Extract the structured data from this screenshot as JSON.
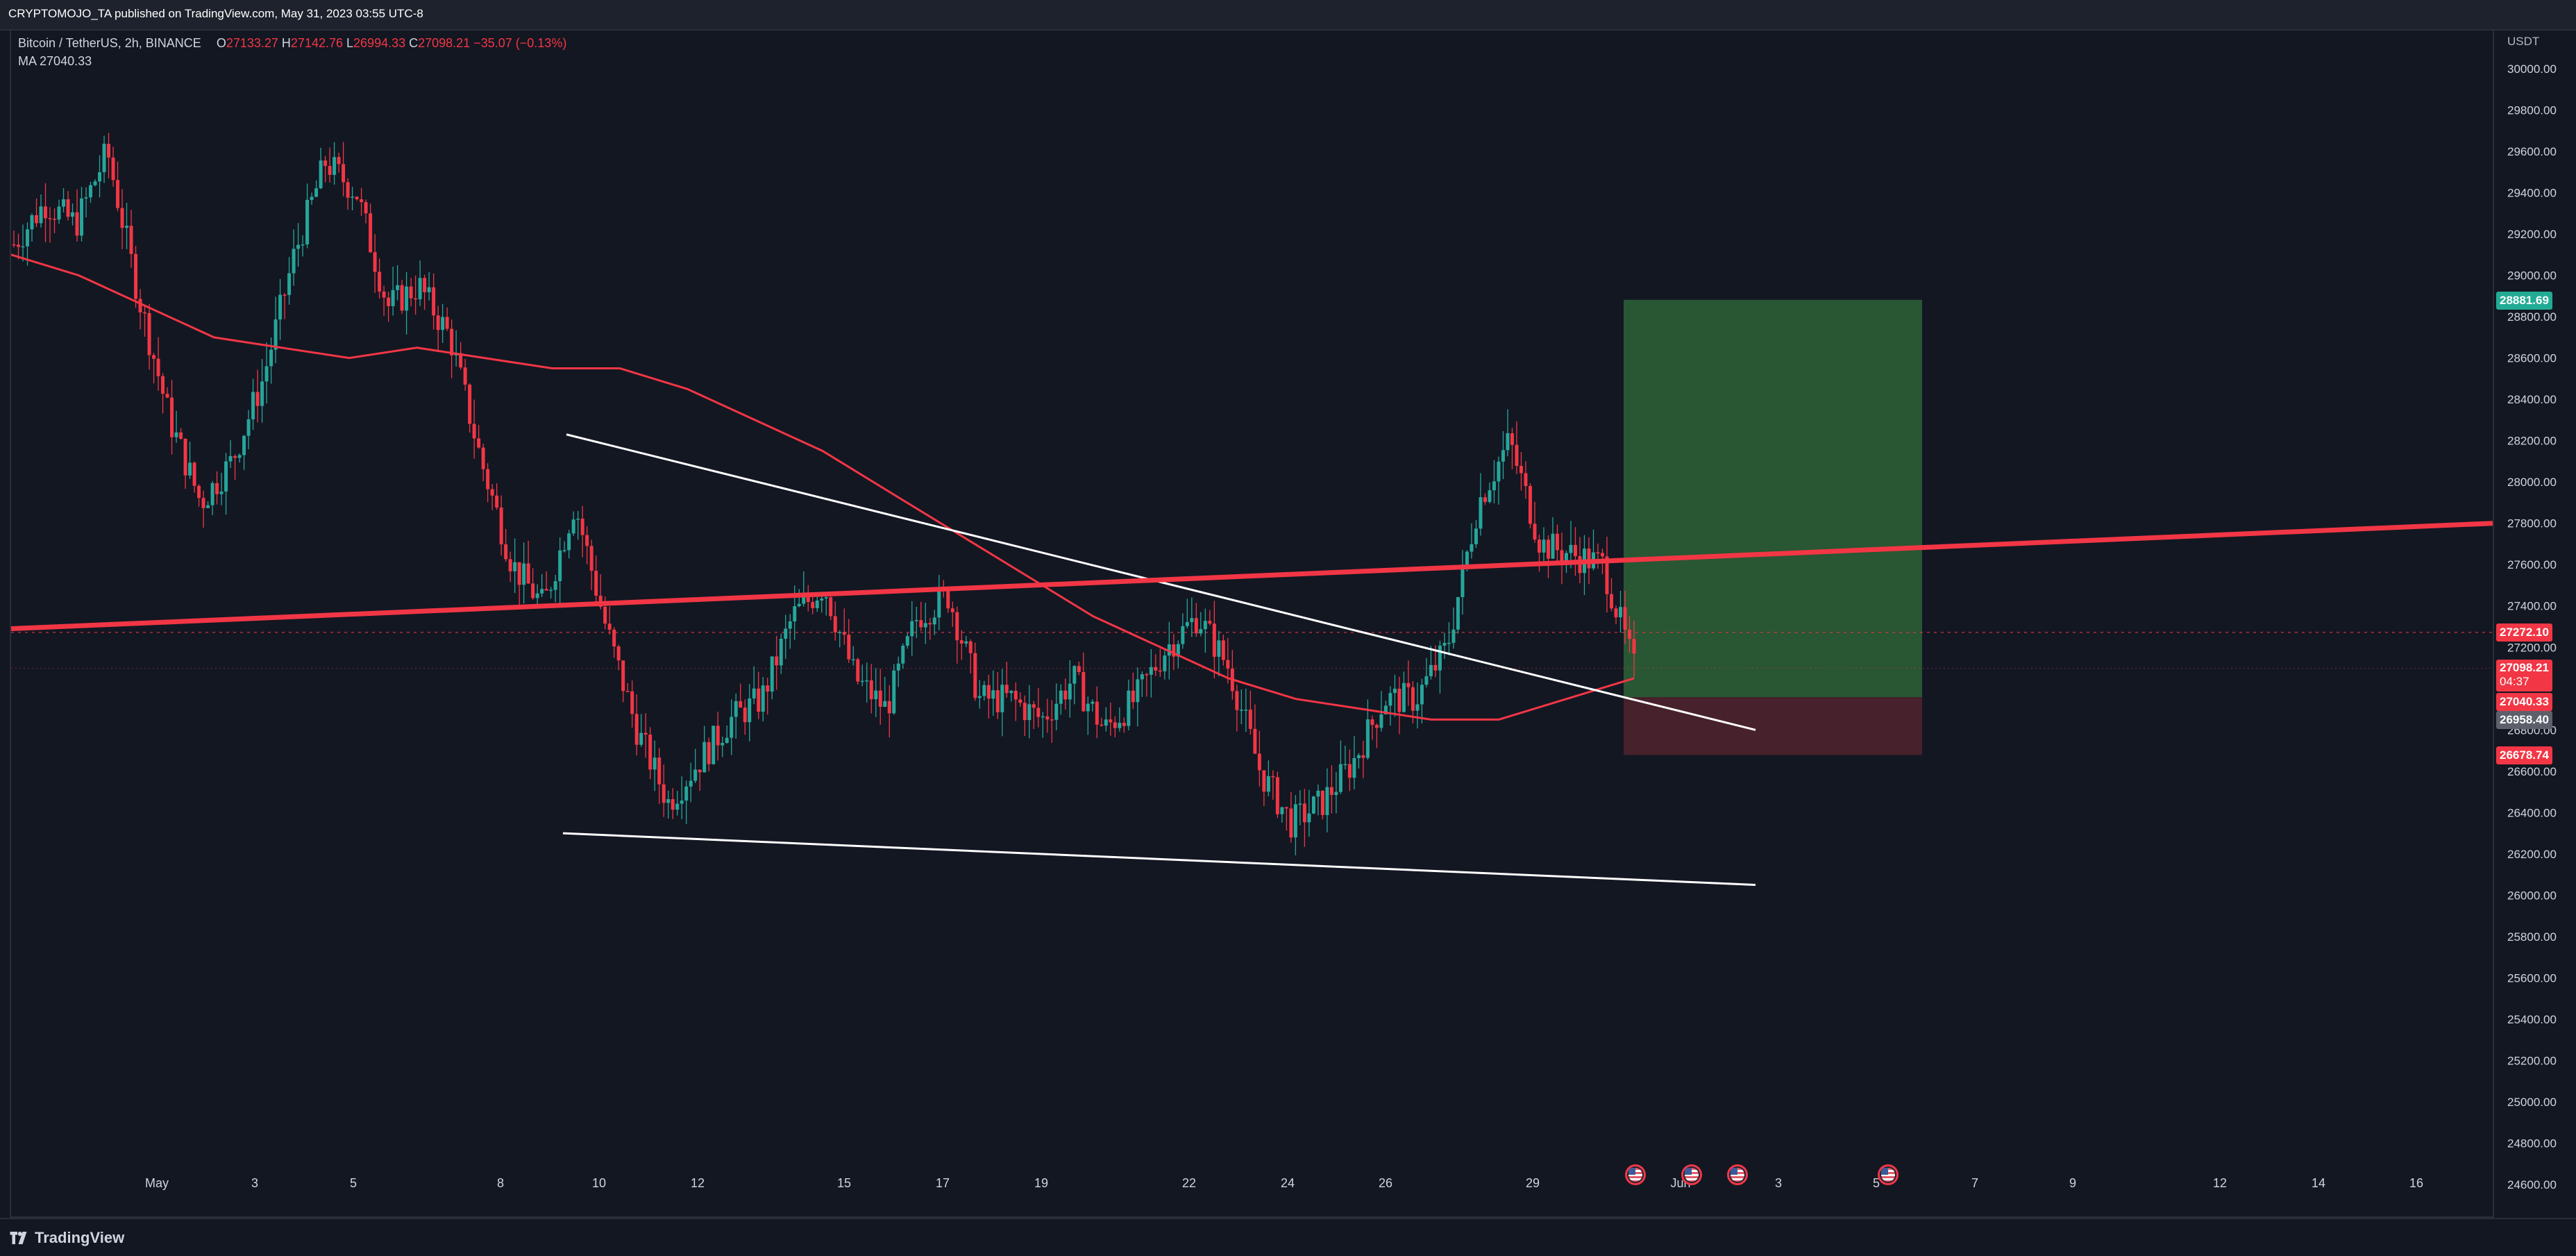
{
  "header": {
    "publisher_text": "CRYPTOMOJO_TA published on TradingView.com, May 31, 2023 03:55 UTC-8"
  },
  "legend": {
    "symbol": "Bitcoin / TetherUS, 2h, BINANCE",
    "o_label": "O",
    "o_value": "27133.27",
    "h_label": "H",
    "h_value": "27142.76",
    "l_label": "L",
    "l_value": "26994.33",
    "c_label": "C",
    "c_value": "27098.21",
    "change": "−35.07 (−0.13%)",
    "ma_label": "MA",
    "ma_value": "27040.33"
  },
  "axis": {
    "unit": "USDT",
    "y_ticks": [
      "30000.00",
      "29800.00",
      "29600.00",
      "29400.00",
      "29200.00",
      "29000.00",
      "28800.00",
      "28600.00",
      "28400.00",
      "28200.00",
      "28000.00",
      "27800.00",
      "27600.00",
      "27400.00",
      "27200.00",
      "26800.00",
      "26600.00",
      "26400.00",
      "26200.00",
      "26000.00",
      "25800.00",
      "25600.00",
      "25400.00",
      "25200.00",
      "25000.00",
      "24800.00",
      "24600.00"
    ],
    "x_ticks": [
      "May",
      "3",
      "5",
      "8",
      "10",
      "12",
      "15",
      "17",
      "19",
      "22",
      "24",
      "26",
      "29",
      "Jun",
      "3",
      "5",
      "7",
      "9",
      "12",
      "14",
      "16"
    ]
  },
  "price_tags": {
    "target": "28881.69",
    "level": "27272.10",
    "last": "27098.21",
    "countdown": "04:37",
    "ma": "27040.33",
    "entry": "26958.40",
    "stop": "26678.74"
  },
  "colors": {
    "background": "#131722",
    "up": "#26a69a",
    "down": "#f23645",
    "ma": "#f23645",
    "profit_zone": "#2a5a35",
    "loss_zone": "#4a222c"
  },
  "footer": {
    "brand": "TradingView"
  },
  "icons": [
    "tradingview-logo-icon",
    "us-flag-event-icon"
  ],
  "chart_data": {
    "type": "candlestick",
    "title": "Bitcoin / TetherUS, 2h, BINANCE",
    "ylabel": "USDT",
    "ylim": [
      24500,
      30100
    ],
    "x_labels": [
      "May",
      "3",
      "5",
      "8",
      "10",
      "12",
      "15",
      "17",
      "19",
      "22",
      "24",
      "26",
      "29",
      "Jun",
      "3",
      "5",
      "7",
      "9",
      "12",
      "14",
      "16"
    ],
    "approx_close_path": [
      29150,
      29350,
      29250,
      29600,
      28900,
      28300,
      27900,
      28100,
      28500,
      29100,
      29550,
      29400,
      28850,
      28950,
      28700,
      28100,
      27600,
      27400,
      27900,
      27300,
      26800,
      26450,
      26650,
      26850,
      26950,
      27350,
      27500,
      27050,
      26900,
      27350,
      27450,
      26950,
      26950,
      26850,
      27050,
      26800,
      26950,
      27200,
      27350,
      27100,
      26600,
      26350,
      26450,
      26650,
      26950,
      26950,
      27200,
      27900,
      28200,
      27700,
      27650,
      27600,
      27100
    ],
    "moving_average": [
      29100,
      29000,
      28850,
      28700,
      28650,
      28600,
      28650,
      28600,
      28550,
      28550,
      28450,
      28300,
      28150,
      27950,
      27750,
      27550,
      27350,
      27200,
      27050,
      26950,
      26900,
      26850,
      26850,
      26950,
      27050
    ],
    "trendlines": [
      {
        "name": "descending resistance",
        "from": [
          "10",
          28230
        ],
        "to": [
          "Jun 2",
          26800
        ]
      },
      {
        "name": "support",
        "from": [
          "9",
          26300
        ],
        "to": [
          "Jun 2",
          26050
        ]
      },
      {
        "name": "horizontal support/resistance",
        "from": [
          "May",
          27300
        ],
        "to": [
          "16",
          27800
        ]
      }
    ],
    "position": {
      "type": "long",
      "entry": 26958.4,
      "target": 28881.69,
      "stop": 26678.74
    },
    "last_price": 27098.21,
    "level_line": 27272.1
  }
}
